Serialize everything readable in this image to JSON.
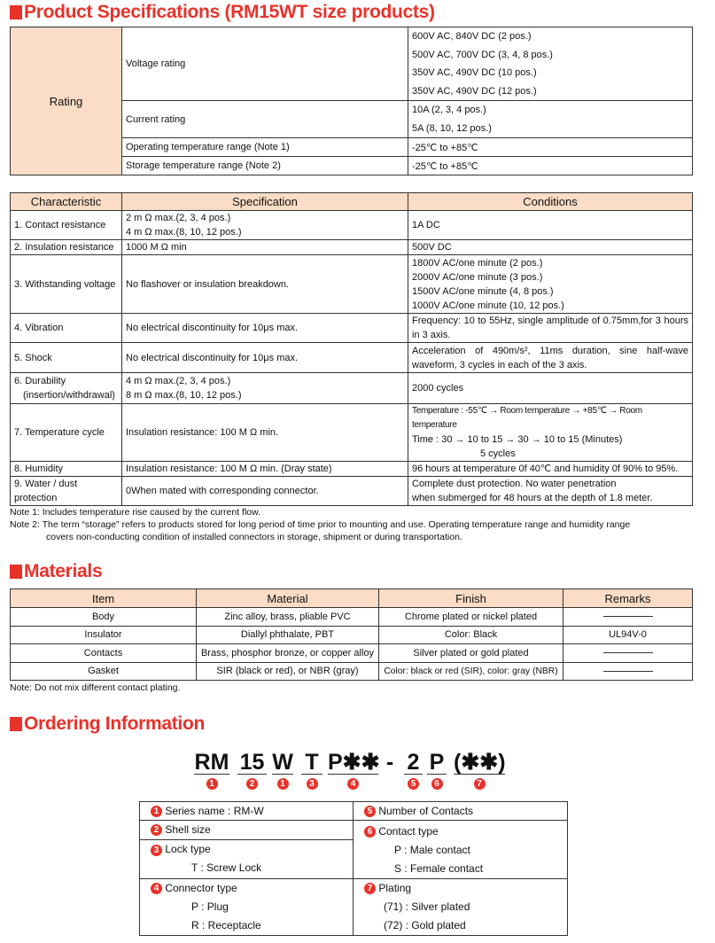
{
  "sections": {
    "spec_title": "Product Specifications (RM15WT size products)",
    "materials_title": "Materials",
    "ordering_title": "Ordering Information"
  },
  "rating": {
    "label": "Rating",
    "voltage_label": "Voltage rating",
    "voltage_values": [
      "600V AC, 840V DC (2 pos.)",
      "500V AC, 700V DC (3, 4, 8 pos.)",
      "350V AC, 490V DC (10 pos.)",
      "350V AC, 490V DC (12 pos.)"
    ],
    "current_label": "Current rating",
    "current_values": [
      "10A (2, 3, 4 pos.)",
      "5A (8, 10, 12 pos.)"
    ],
    "op_temp_label": "Operating temperature range (Note 1)",
    "op_temp_value": "-25℃ to +85℃",
    "storage_temp_label": "Storage temperature range (Note 2)",
    "storage_temp_value": "-25℃ to +85℃"
  },
  "characteristics": {
    "headers": [
      "Characteristic",
      "Specification",
      "Conditions"
    ],
    "rows": [
      {
        "c": [
          "1. Contact resistance"
        ],
        "s": [
          "2 m Ω max.(2, 3, 4 pos.)",
          "4 m Ω max.(8, 10, 12 pos.)"
        ],
        "k": [
          "1A DC"
        ]
      },
      {
        "c": [
          "2. Insulation resistance"
        ],
        "s": [
          "1000 M Ω min"
        ],
        "k": [
          "500V DC"
        ]
      },
      {
        "c": [
          "3. Withstanding voltage"
        ],
        "s": [
          "No flashover or insulation breakdown."
        ],
        "k": [
          "1800V AC/one minute (2 pos.)",
          "2000V AC/one minute (3 pos.)",
          "1500V AC/one minute (4, 8 pos.)",
          "1000V AC/one minute (10, 12 pos.)"
        ]
      },
      {
        "c": [
          "4. Vibration"
        ],
        "s": [
          "No electrical discontinuity for 10μs max."
        ],
        "k": [
          "Frequency: 10 to 55Hz, single amplitude of 0.75mm,for 3 hours in 3 axis."
        ]
      },
      {
        "c": [
          "5. Shock"
        ],
        "s": [
          "No electrical discontinuity for 10μs max."
        ],
        "k": [
          "Acceleration of 490m/s², 11ms duration, sine half-wave waveform, 3 cycles in each of the 3 axis."
        ]
      },
      {
        "c": [
          "6. Durability",
          "(insertion/withdrawal)"
        ],
        "s": [
          "4 m Ω max.(2, 3, 4 pos.)",
          "8 m Ω max.(8, 10, 12 pos.)"
        ],
        "k": [
          "2000 cycles"
        ]
      },
      {
        "c": [
          "7. Temperature cycle"
        ],
        "s": [
          "Insulation resistance: 100 M Ω min."
        ],
        "k": [
          "Temperature  : -55℃ → Room temperature → +85℃ → Room temperature",
          "Time           : 30 → 10 to 15 → 30 → 10 to 15 (Minutes)",
          "5 cycles"
        ]
      },
      {
        "c": [
          "8. Humidity"
        ],
        "s": [
          "Insulation resistance: 100 M Ω min. (Dray state)"
        ],
        "k": [
          "96 hours at temperature 0f 40℃ and humidity 0f 90% to 95%."
        ]
      },
      {
        "c": [
          "9. Water / dust protection"
        ],
        "s": [
          "0When mated with corresponding connector."
        ],
        "k": [
          "Complete dust protection. No water penetration",
          "when submerged for 48 hours at the depth of 1.8 meter."
        ]
      }
    ]
  },
  "notes": {
    "note1": "Note 1: Includes temperature rise caused by the current flow.",
    "note2_a": "Note 2: The term “storage” refers to products stored for long period of time prior to mounting and use. Operating temperature range and humidity range",
    "note2_b": "covers non-conducting condition of installed connectors in storage, shipment or during transportation.",
    "materials_note": "Note: Do not mix different contact plating."
  },
  "materials": {
    "headers": [
      "Item",
      "Material",
      "Finish",
      "Remarks"
    ],
    "rows": [
      [
        "Body",
        "Zinc alloy, brass, pliable PVC",
        "Chrome plated or nickel plated",
        ""
      ],
      [
        "Insulator",
        "Diallyl phthalate, PBT",
        "Color: Black",
        "UL94V-0"
      ],
      [
        "Contacts",
        "Brass, phosphor bronze, or copper alloy",
        "Silver plated or gold plated",
        ""
      ],
      [
        "Gasket",
        "SIR (black or red), or NBR (gray)",
        "Color: black or red (SIR), color: gray (NBR)",
        ""
      ]
    ]
  },
  "ordering": {
    "code_segments": [
      {
        "text": "RM",
        "num": "1"
      },
      {
        "text": "15",
        "num": "2"
      },
      {
        "text": "W",
        "num": "1"
      },
      {
        "text": "T",
        "num": "3"
      },
      {
        "text": "P✱✱",
        "num": "4"
      },
      {
        "text": "-",
        "num": ""
      },
      {
        "text": "2",
        "num": "5"
      },
      {
        "text": "P",
        "num": "6"
      },
      {
        "text": "(✱✱)",
        "num": "7"
      }
    ],
    "series": {
      "num": "1",
      "label": "Series name : RM-W"
    },
    "shell": {
      "num": "2",
      "label": "Shell size"
    },
    "lock": {
      "num": "3",
      "label": "Lock type",
      "options": [
        "T : Screw Lock"
      ]
    },
    "connector": {
      "num": "4",
      "label": "Connector type",
      "options": [
        "P : Plug",
        "R : Receptacle"
      ]
    },
    "contacts_num": {
      "num": "5",
      "label": "Number of Contacts"
    },
    "contact_type": {
      "num": "6",
      "label": "Contact type",
      "options": [
        "P : Male contact",
        "S : Female contact"
      ]
    },
    "plating": {
      "num": "7",
      "label": "Plating",
      "options": [
        "(71) : Silver plated",
        "(72) : Gold plated"
      ]
    }
  },
  "colors": {
    "accent": "#e8322a",
    "header_fill": "#fbdcc6"
  }
}
